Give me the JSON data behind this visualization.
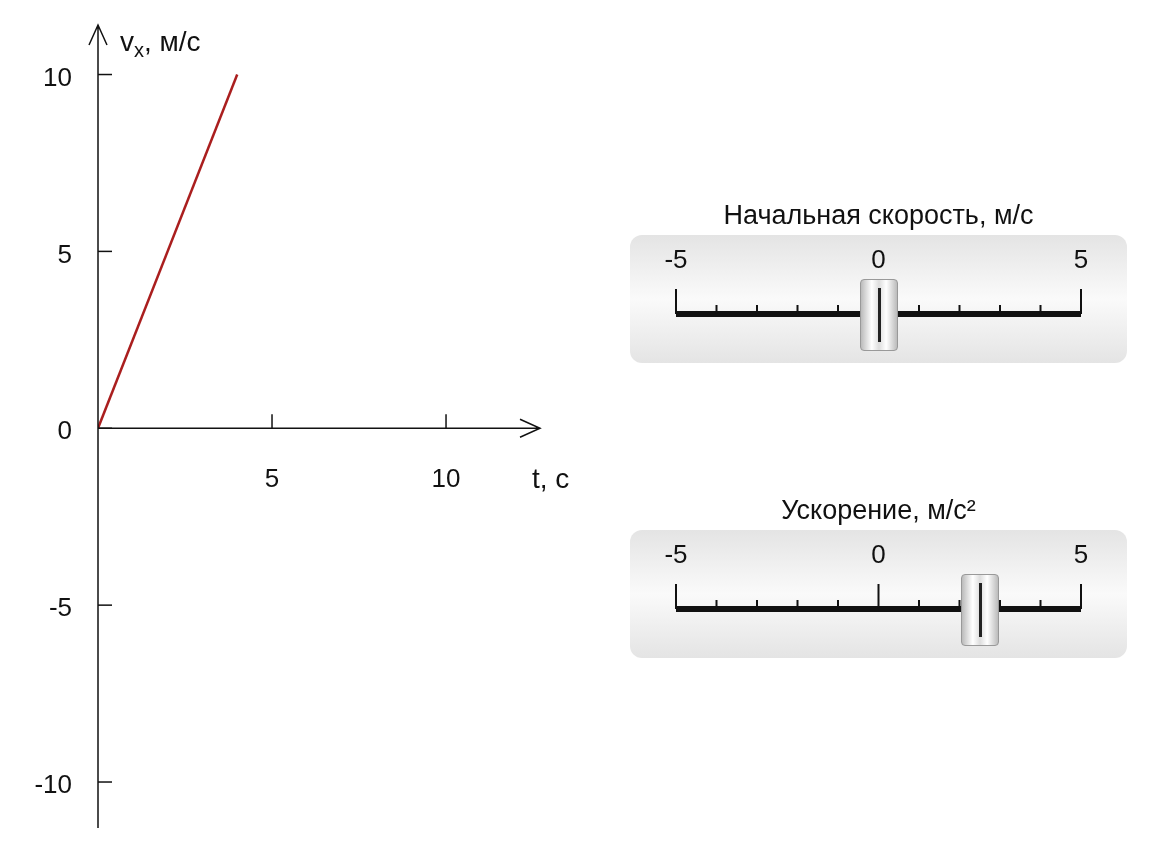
{
  "chart_data": [
    {
      "type": "line",
      "xlabel": "t, с",
      "ylabel": "v$_{x}$, м/с",
      "x": [
        0,
        4
      ],
      "series": [
        {
          "color": "#aa1e1e",
          "values": [
            0,
            10
          ]
        }
      ],
      "xlim": [
        0,
        12.7
      ],
      "ylim": [
        -11.3,
        11.4
      ],
      "xticks": [
        5,
        10
      ],
      "yticks": [
        -10,
        -5,
        0,
        5,
        10
      ],
      "grid": false,
      "legend": false,
      "marker": "none",
      "line_style": "solid"
    },
    {
      "type": "other",
      "title": "Начальная скорость, м/с",
      "annotations": [
        "-5",
        "0",
        "5"
      ]
    },
    {
      "type": "other",
      "title": "Ускорение, м/с²",
      "annotations": [
        "-5",
        "0",
        "5"
      ]
    }
  ]
}
